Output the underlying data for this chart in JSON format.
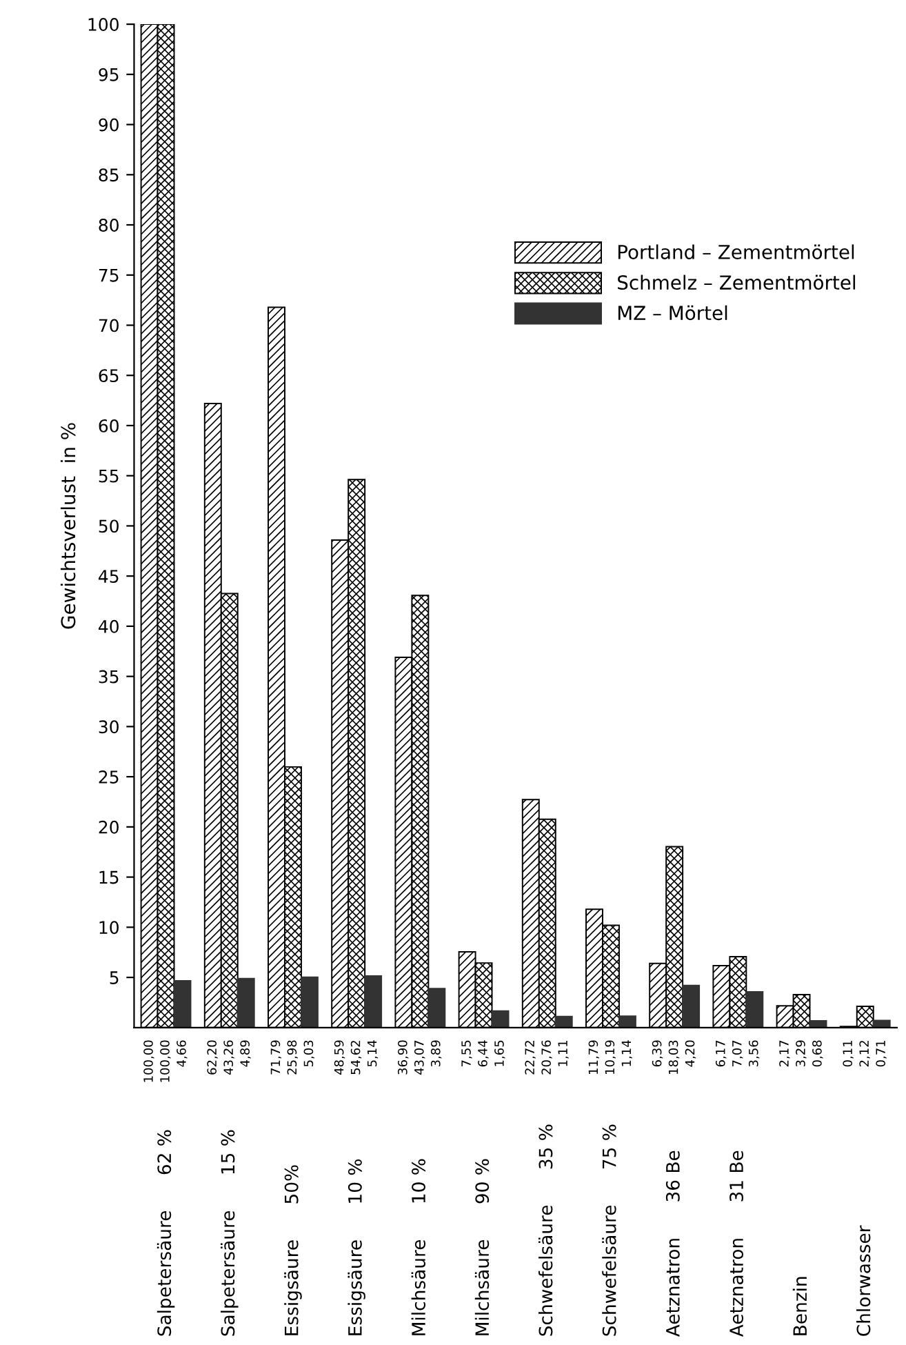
{
  "chart_data": {
    "type": "bar",
    "ylabel": "Gewichtsverlust  in %",
    "categories": [
      "Salpetersäure      62 %",
      "Salpetersäure      15 %",
      "Essigsäure      50%",
      "Essigsäure      10 %",
      "Milchsäure      10 %",
      "Milchsäure      90 %",
      "Schwefelsäure      35 %",
      "Schwefelsäure      75 %",
      "Aetznatron      36 Be",
      "Aetznatron      31 Be",
      "Benzin",
      "Chlorwasser"
    ],
    "series": [
      {
        "name": "Portland – Zementmörtel",
        "color": "#000000",
        "values": [
          100.0,
          62.2,
          71.79,
          48.59,
          36.9,
          7.55,
          22.72,
          11.79,
          6.39,
          6.17,
          2.17,
          0.11
        ],
        "value_labels": [
          "100,00",
          "62,20",
          "71,79",
          "48,59",
          "36,90",
          "7,55",
          "22,72",
          "11,79",
          "6,39",
          "6,17",
          "2,17",
          "0,11"
        ]
      },
      {
        "name": "Schmelz – Zementmörtel",
        "color": "#000000",
        "values": [
          100.0,
          43.26,
          25.98,
          54.62,
          43.07,
          6.44,
          20.76,
          10.19,
          18.03,
          7.07,
          3.29,
          2.12
        ],
        "value_labels": [
          "100,00",
          "43,26",
          "25,98",
          "54,62",
          "43,07",
          "6,44",
          "20,76",
          "10,19",
          "18,03",
          "7,07",
          "3,29",
          "2,12"
        ]
      },
      {
        "name": "MZ – Mörtel",
        "color": "#333333",
        "values": [
          4.66,
          4.89,
          5.03,
          5.14,
          3.89,
          1.65,
          1.11,
          1.14,
          4.2,
          3.56,
          0.68,
          0.71
        ],
        "value_labels": [
          "4,66",
          "4,89",
          "5,03",
          "5,14",
          "3,89",
          "1,65",
          "1,11",
          "1,14",
          "4,20",
          "3,56",
          "0,68",
          "0,71"
        ]
      }
    ],
    "ylim": [
      0,
      100
    ],
    "yticks": [
      5,
      10,
      15,
      20,
      25,
      30,
      35,
      40,
      45,
      50,
      55,
      60,
      65,
      70,
      75,
      80,
      85,
      90,
      95,
      100
    ],
    "grid": false,
    "legend": "top right"
  }
}
